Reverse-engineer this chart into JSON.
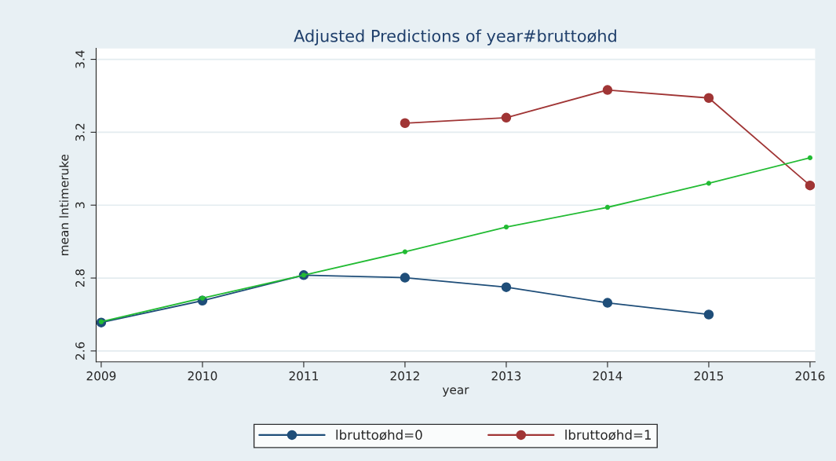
{
  "chart_data": {
    "type": "line",
    "title": "Adjusted Predictions of year#bruttoøhd",
    "xlabel": "year",
    "ylabel": "mean lntimeruke",
    "xlim": [
      2008.95,
      2016.05
    ],
    "xticks": [
      2009,
      2010,
      2011,
      2012,
      2013,
      2014,
      2015,
      2016
    ],
    "ylim": [
      2.57,
      3.43
    ],
    "yticks": [
      2.6,
      2.8,
      3,
      3.2,
      3.4
    ],
    "grid": "y",
    "legend": "bottom",
    "marker": "circle",
    "series": [
      {
        "name": "lbruttoøhd=0",
        "color": "#1f4e79",
        "x": [
          2009,
          2010,
          2011,
          2012,
          2013,
          2014,
          2015
        ],
        "values": [
          2.678,
          2.738,
          2.808,
          2.801,
          2.775,
          2.732,
          2.7
        ]
      },
      {
        "name": "lbruttoøhd=1",
        "color": "#a03535",
        "x": [
          2012,
          2013,
          2014,
          2015,
          2016
        ],
        "values": [
          3.225,
          3.24,
          3.316,
          3.294,
          3.054
        ]
      },
      {
        "color": "#22bb33",
        "marker": "dot",
        "x": [
          2009,
          2010,
          2011,
          2012,
          2013,
          2014,
          2015,
          2016
        ],
        "values": [
          2.68,
          2.745,
          2.808,
          2.872,
          2.94,
          2.994,
          3.06,
          3.13
        ]
      }
    ]
  }
}
